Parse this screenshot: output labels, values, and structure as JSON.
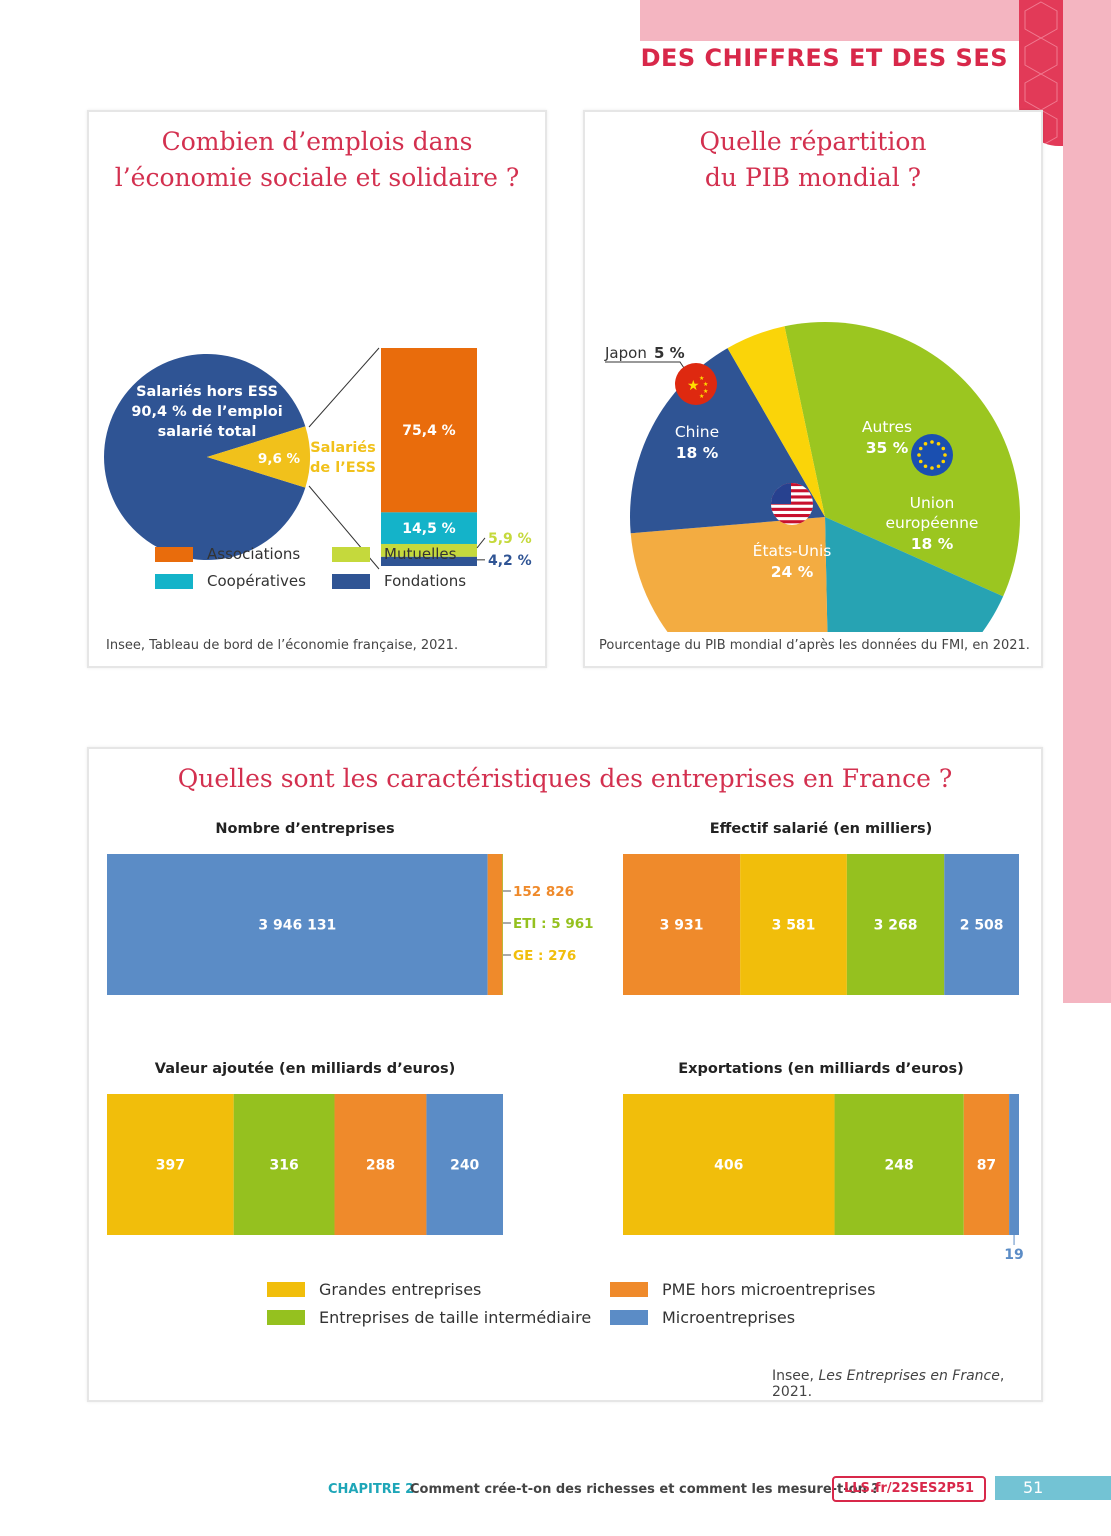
{
  "header": {
    "title": "DES CHIFFRES ET DES SES"
  },
  "colors": {
    "brand": "#d8284a",
    "associations": "#e96c0c",
    "cooperatives": "#14b3c9",
    "mutuelles": "#c5d93c",
    "fondations": "#2f5494",
    "ess_slice": "#f1c11b",
    "hors_ess": "#2f5494",
    "autres": "#9bc620",
    "ue": "#27a3b3",
    "eu": "#f3ac41",
    "chine": "#2f5494",
    "japon": "#fad409",
    "grandes": "#f1be0b",
    "eti": "#95c11f",
    "pme": "#ef8a2b",
    "micro": "#5b8cc6"
  },
  "ess_card": {
    "title_line1": "Combien d’emplois dans",
    "title_line2": "l’économie sociale et solidaire ?",
    "pie_label_line1": "Salariés hors ESS",
    "pie_label_line2": "90,4 % de l’emploi",
    "pie_label_line3": "salarié total",
    "ess_value": "9,6 %",
    "ess_label_line1": "Salariés",
    "ess_label_line2": "de l’ESS",
    "bar_assoc": "75,4 %",
    "bar_coop": "14,5 %",
    "bar_mut": "5,9 %",
    "bar_fond": "4,2 %",
    "legend": {
      "associations": "Associations",
      "mutuelles": "Mutuelles",
      "cooperatives": "Coopératives",
      "fondations": "Fondations"
    },
    "source": "Insee, Tableau de bord de l’économie française, 2021."
  },
  "pib_card": {
    "title_line1": "Quelle répartition",
    "title_line2": "du PIB mondial ?",
    "labels": {
      "japon_name": "Japon",
      "japon_value": "5 %",
      "autres_name": "Autres",
      "autres_value": "35 %",
      "chine_name": "Chine",
      "chine_value": "18 %",
      "eu_name": "États-Unis",
      "eu_value": "24 %",
      "ue_name1": "Union",
      "ue_name2": "européenne",
      "ue_value": "18 %"
    },
    "source": "Pourcentage du PIB mondial d’après les données du FMI, en 2021."
  },
  "ent_card": {
    "title": "Quelles sont les caractéristiques des entreprises en France ?",
    "sub1": "Nombre d’entreprises",
    "sub2": "Effectif salarié (en milliers)",
    "sub3": "Valeur ajoutée (en milliards d’euros)",
    "sub4": "Exportations (en milliards d’euros)",
    "nb_micro": "3 946 131",
    "nb_pme": "152 826",
    "nb_eti": "ETI : 5 961",
    "nb_ge": "GE : 276",
    "eff": [
      "3 931",
      "3 581",
      "3 268",
      "2 508"
    ],
    "va": [
      "397",
      "316",
      "288",
      "240"
    ],
    "exp": [
      "406",
      "248",
      "87",
      "19"
    ],
    "legend": {
      "grandes": "Grandes entreprises",
      "eti": "Entreprises de taille intermédiaire",
      "pme": "PME hors microentreprises",
      "micro": "Microentreprises"
    },
    "source_prefix": "Insee, ",
    "source_title": "Les Entreprises en France",
    "source_suffix": ", 2021."
  },
  "footer": {
    "chapter": "CHAPITRE 2",
    "text": "Comment crée-t-on des richesses et comment les mesure-t-on ?",
    "link": "LLS.fr/22SES2P51",
    "page": "51"
  },
  "chart_data": [
    {
      "type": "pie",
      "categories": [
        "Salariés hors ESS",
        "Salariés de l’ESS"
      ],
      "values": [
        90.4,
        9.6
      ]
    },
    {
      "type": "bar",
      "categories": [
        "Associations",
        "Coopératives",
        "Mutuelles",
        "Fondations"
      ],
      "values": [
        75.4,
        14.5,
        5.9,
        4.2
      ]
    },
    {
      "type": "pie",
      "categories": [
        "Autres",
        "Union européenne",
        "États-Unis",
        "Chine",
        "Japon"
      ],
      "values": [
        35,
        18,
        24,
        18,
        5
      ]
    },
    {
      "type": "bar",
      "title": "Nombre d’entreprises",
      "categories": [
        "Microentreprises",
        "PME hors microentreprises",
        "Entreprises de taille intermédiaire",
        "Grandes entreprises"
      ],
      "values": [
        3946131,
        152826,
        5961,
        276
      ]
    },
    {
      "type": "bar",
      "title": "Effectif salarié (en milliers)",
      "categories": [
        "PME hors microentreprises",
        "Grandes entreprises",
        "Entreprises de taille intermédiaire",
        "Microentreprises"
      ],
      "values": [
        3931,
        3581,
        3268,
        2508
      ]
    },
    {
      "type": "bar",
      "title": "Valeur ajoutée (en milliards d’euros)",
      "categories": [
        "Grandes entreprises",
        "Entreprises de taille intermédiaire",
        "PME hors microentreprises",
        "Microentreprises"
      ],
      "values": [
        397,
        316,
        288,
        240
      ]
    },
    {
      "type": "bar",
      "title": "Exportations (en milliards d’euros)",
      "categories": [
        "Grandes entreprises",
        "Entreprises de taille intermédiaire",
        "PME hors microentreprises",
        "Microentreprises"
      ],
      "values": [
        406,
        248,
        87,
        19
      ]
    }
  ]
}
